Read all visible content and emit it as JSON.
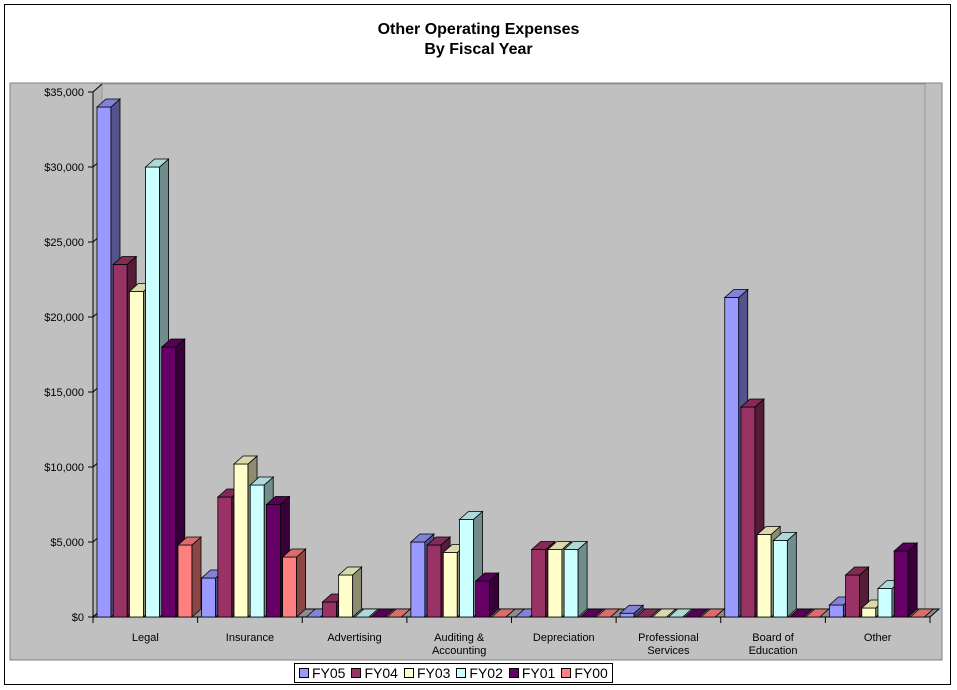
{
  "chart_data": {
    "type": "bar",
    "title": "Other Operating Expenses",
    "subtitle": "By Fiscal Year",
    "categories": [
      "Legal",
      "Insurance",
      "Advertising",
      "Auditing & Accounting",
      "Depreciation",
      "Professional Services",
      "Board of Education",
      "Other"
    ],
    "category_lines": [
      [
        "Legal"
      ],
      [
        "Insurance"
      ],
      [
        "Advertising"
      ],
      [
        "Auditing &",
        "Accounting"
      ],
      [
        "Depreciation"
      ],
      [
        "Professional",
        "Services"
      ],
      [
        "Board of",
        "Education"
      ],
      [
        "Other"
      ]
    ],
    "series": [
      {
        "name": "FY05",
        "color": "#9999FF",
        "values": [
          34000,
          2600,
          0,
          5000,
          0,
          250,
          21300,
          800
        ]
      },
      {
        "name": "FY04",
        "color": "#993366",
        "values": [
          23500,
          8000,
          1000,
          4800,
          4500,
          0,
          14000,
          2800
        ]
      },
      {
        "name": "FY03",
        "color": "#FFFFCC",
        "values": [
          21700,
          10200,
          2800,
          4300,
          4500,
          0,
          5500,
          600
        ]
      },
      {
        "name": "FY02",
        "color": "#CCFFFF",
        "values": [
          30000,
          8800,
          0,
          6500,
          4500,
          0,
          5100,
          1900
        ]
      },
      {
        "name": "FY01",
        "color": "#660066",
        "values": [
          18000,
          7500,
          0,
          2400,
          0,
          0,
          0,
          4400
        ]
      },
      {
        "name": "FY00",
        "color": "#FF8080",
        "values": [
          4800,
          4000,
          0,
          0,
          0,
          0,
          0,
          0
        ]
      }
    ],
    "ylim": [
      0,
      35000
    ],
    "yticks": [
      0,
      5000,
      10000,
      15000,
      20000,
      25000,
      30000,
      35000
    ],
    "ytick_labels": [
      "$0",
      "$5,000",
      "$10,000",
      "$15,000",
      "$20,000",
      "$25,000",
      "$30,000",
      "$35,000"
    ],
    "xlabel": "",
    "ylabel": "",
    "grid": false,
    "legend_position": "bottom",
    "plot_background": "#C0C0C0"
  }
}
